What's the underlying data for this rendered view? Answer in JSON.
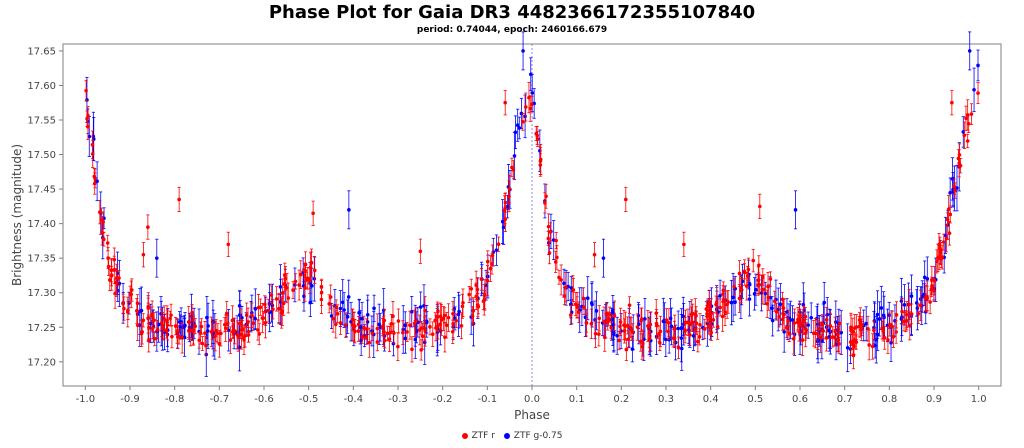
{
  "chart_data": {
    "type": "scatter",
    "title": "Phase Plot for Gaia DR3 4482366172355107840",
    "subtitle": "period: 0.74044, epoch: 2460166.679",
    "xlabel": "Phase",
    "ylabel": "Brightness (magnitude)",
    "xlim": [
      -1.05,
      1.05
    ],
    "ylim": [
      17.66,
      17.165
    ],
    "y_inverted": true,
    "x_ticks": [
      "-1.0",
      "-0.9",
      "-0.8",
      "-0.7",
      "-0.6",
      "-0.5",
      "-0.4",
      "-0.3",
      "-0.2",
      "-0.1",
      "0.0",
      "0.1",
      "0.2",
      "0.3",
      "0.4",
      "0.5",
      "0.6",
      "0.7",
      "0.8",
      "0.9",
      "1.0"
    ],
    "y_ticks": [
      "17.20",
      "17.25",
      "17.30",
      "17.35",
      "17.40",
      "17.45",
      "17.50",
      "17.55",
      "17.60",
      "17.65"
    ],
    "grid": false,
    "legend_position": "bottom-center",
    "error_bars": true,
    "series": [
      {
        "name": "ZTF r",
        "color": "#ff0000",
        "light_curve": {
          "x": [
            0.0,
            0.02,
            0.04,
            0.06,
            0.08,
            0.1,
            0.13,
            0.17,
            0.22,
            0.28,
            0.33,
            0.38,
            0.42,
            0.45,
            0.48,
            0.5,
            0.52,
            0.55,
            0.58,
            0.62,
            0.67,
            0.72,
            0.78,
            0.83,
            0.87,
            0.9,
            0.92,
            0.94,
            0.96,
            0.98,
            1.0
          ],
          "y": [
            17.58,
            17.48,
            17.38,
            17.33,
            17.3,
            17.28,
            17.26,
            17.25,
            17.245,
            17.24,
            17.245,
            17.26,
            17.28,
            17.3,
            17.32,
            17.33,
            17.31,
            17.27,
            17.26,
            17.25,
            17.245,
            17.24,
            17.25,
            17.26,
            17.28,
            17.32,
            17.36,
            17.42,
            17.5,
            17.55,
            17.58
          ]
        },
        "outliers": [
          {
            "x": -0.86,
            "y": 17.395
          },
          {
            "x": -0.79,
            "y": 17.435
          },
          {
            "x": -0.68,
            "y": 17.37
          },
          {
            "x": -0.87,
            "y": 17.355
          },
          {
            "x": -0.49,
            "y": 17.415
          },
          {
            "x": -0.25,
            "y": 17.36
          },
          {
            "x": -0.06,
            "y": 17.575
          },
          {
            "x": 0.14,
            "y": 17.355
          },
          {
            "x": 0.21,
            "y": 17.435
          },
          {
            "x": 0.34,
            "y": 17.37
          },
          {
            "x": 0.51,
            "y": 17.425
          },
          {
            "x": 0.94,
            "y": 17.575
          }
        ],
        "scatter_mag": 0.025,
        "error_mag": 0.016
      },
      {
        "name": "ZTF g-0.75",
        "color": "#0000ff",
        "light_curve": {
          "x": [
            0.0,
            0.02,
            0.04,
            0.06,
            0.08,
            0.1,
            0.13,
            0.17,
            0.22,
            0.28,
            0.33,
            0.38,
            0.42,
            0.45,
            0.48,
            0.5,
            0.52,
            0.55,
            0.58,
            0.62,
            0.67,
            0.72,
            0.78,
            0.83,
            0.87,
            0.9,
            0.92,
            0.94,
            0.96,
            0.98,
            1.0
          ],
          "y": [
            17.6,
            17.5,
            17.39,
            17.33,
            17.3,
            17.28,
            17.265,
            17.255,
            17.25,
            17.245,
            17.25,
            17.26,
            17.28,
            17.3,
            17.31,
            17.31,
            17.3,
            17.27,
            17.26,
            17.255,
            17.25,
            17.245,
            17.255,
            17.265,
            17.285,
            17.32,
            17.36,
            17.43,
            17.51,
            17.57,
            17.62
          ]
        },
        "outliers": [
          {
            "x": -0.41,
            "y": 17.42
          },
          {
            "x": -0.84,
            "y": 17.35
          },
          {
            "x": 0.59,
            "y": 17.42
          },
          {
            "x": 0.16,
            "y": 17.35
          },
          {
            "x": -0.02,
            "y": 17.65
          },
          {
            "x": 0.98,
            "y": 17.65
          }
        ],
        "scatter_mag": 0.028,
        "error_mag": 0.025
      }
    ]
  }
}
